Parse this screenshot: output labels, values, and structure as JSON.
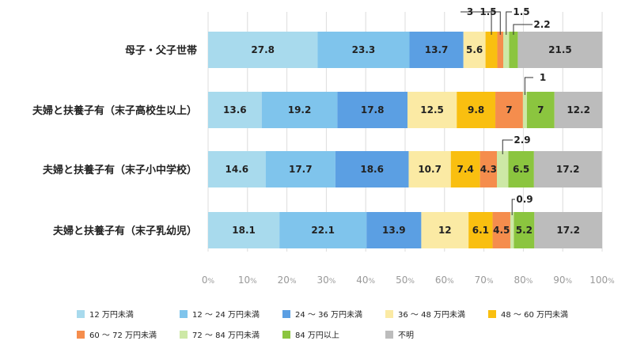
{
  "chart_data": {
    "type": "bar",
    "orientation": "horizontal",
    "stacked": true,
    "categories": [
      "母子・父子世帯",
      "夫婦と扶養子有（末子高校生以上）",
      "夫婦と扶養子有（末子小中学校）",
      "夫婦と扶養子有（末子乳幼児）"
    ],
    "series": [
      {
        "name": "12 万円未満",
        "color": "#a8daed",
        "values": [
          27.8,
          13.6,
          14.6,
          18.1
        ]
      },
      {
        "name": "12 ～ 24 万円未満",
        "color": "#7fc4ec",
        "values": [
          23.3,
          19.2,
          17.7,
          22.1
        ]
      },
      {
        "name": "24 ～ 36 万円未満",
        "color": "#5b9fe3",
        "values": [
          13.7,
          17.8,
          18.6,
          13.9
        ]
      },
      {
        "name": "36 ～ 48 万円未満",
        "color": "#fbeaa4",
        "values": [
          5.6,
          12.5,
          10.7,
          12.0
        ]
      },
      {
        "name": "48 ～ 60 万円未満",
        "color": "#f9bf10",
        "values": [
          3.0,
          9.8,
          7.4,
          6.1
        ]
      },
      {
        "name": "60 ～ 72 万円未満",
        "color": "#f58d4d",
        "values": [
          1.5,
          7.0,
          4.3,
          4.5
        ]
      },
      {
        "name": "72 ～ 84 万円未満",
        "color": "#cde8a6",
        "values": [
          1.5,
          1.0,
          2.9,
          0.9
        ]
      },
      {
        "name": "84 万円以上",
        "color": "#8bc53f",
        "values": [
          2.2,
          7.0,
          6.5,
          5.2
        ]
      },
      {
        "name": "不明",
        "color": "#bcbcbc",
        "values": [
          21.5,
          12.2,
          17.2,
          17.2
        ]
      }
    ],
    "x_ticks": [
      "0",
      "10",
      "20",
      "30",
      "40",
      "50",
      "60",
      "70",
      "80",
      "90",
      "100"
    ],
    "x_tick_unit": "%",
    "xlim": [
      0,
      100
    ],
    "grid": true,
    "legend_position": "bottom"
  }
}
